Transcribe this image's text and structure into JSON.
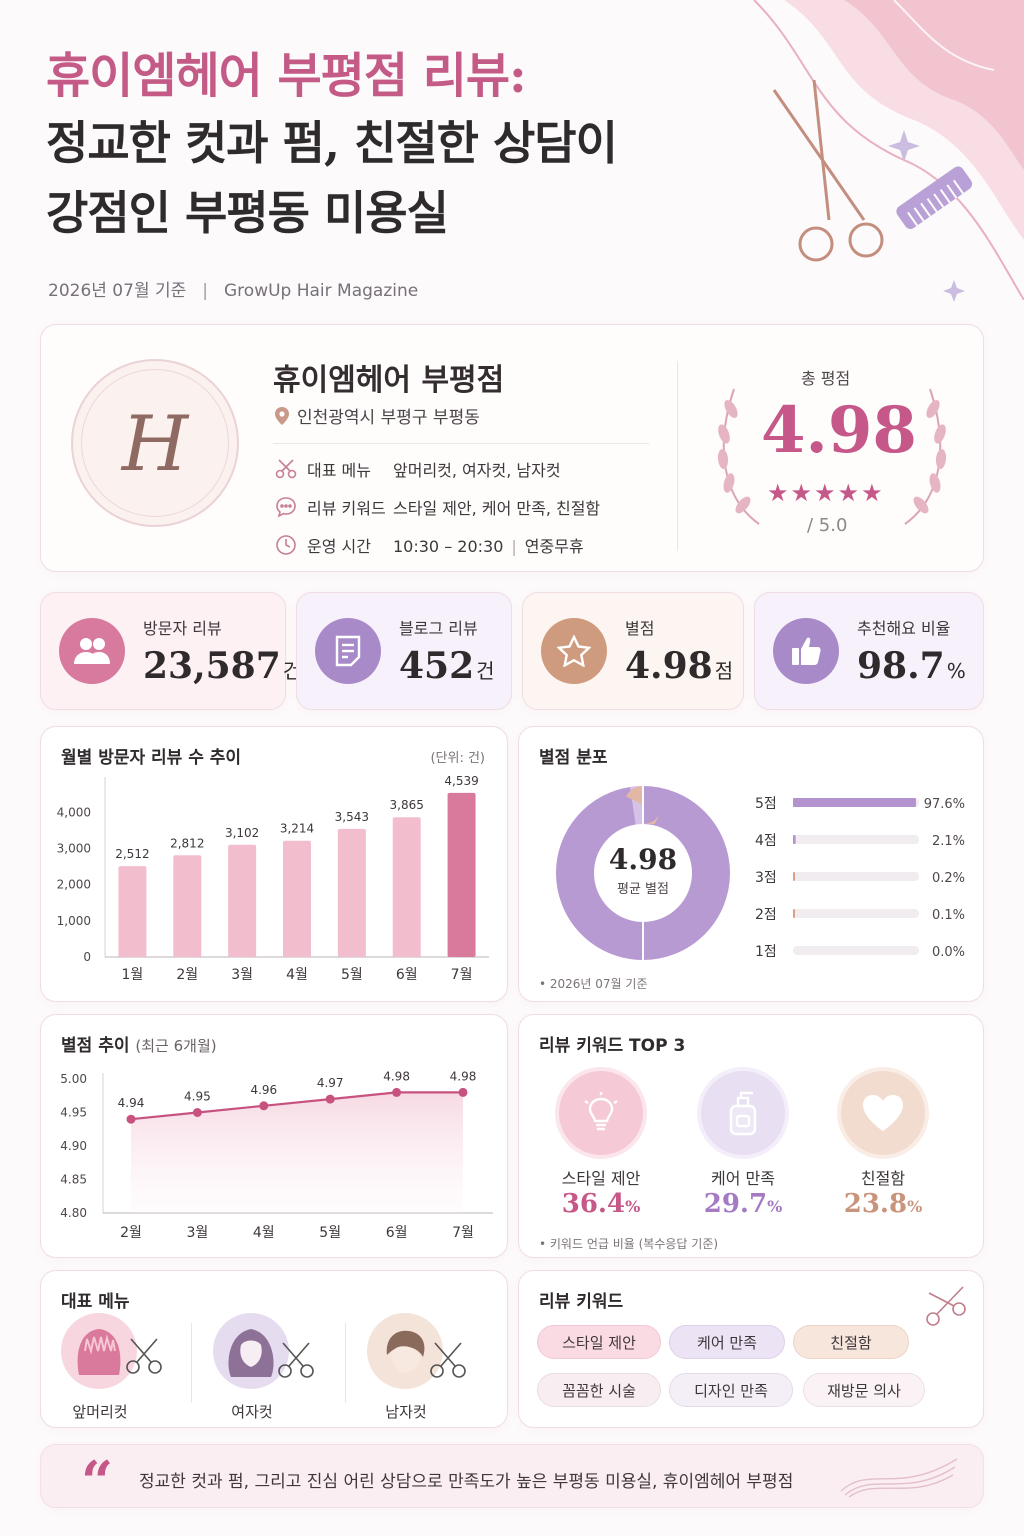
{
  "header": {
    "title_line1": "휴이엠헤어 부평점 리뷰:",
    "title_line2": "정교한 컷과 펌, 친절한 상담이",
    "title_line3": "강점인 부평동 미용실",
    "date": "2026년 07월 기준",
    "publisher": "GrowUp Hair Magazine"
  },
  "shop": {
    "logo_letter": "H",
    "name": "휴이엠헤어 부평점",
    "address": "인천광역시 부평구 부평동",
    "rows": [
      {
        "label": "대표 메뉴",
        "value": "앞머리컷, 여자컷, 남자컷",
        "icon": "scissors-icon"
      },
      {
        "label": "리뷰 키워드",
        "value": "스타일 제안, 케어 만족, 친절함",
        "icon": "chat-bubble-icon"
      },
      {
        "label": "운영 시간",
        "value": "10:30 – 20:30",
        "value_extra": "연중무휴",
        "icon": "clock-icon"
      }
    ],
    "total_label": "총 평점",
    "total_value": "4.98",
    "total_stars": "★★★★★",
    "total_max": "/ 5.0"
  },
  "stats": [
    {
      "label": "방문자 리뷰",
      "value": "23,587",
      "unit": "건",
      "icon": "people-icon",
      "color": "#d77a9e"
    },
    {
      "label": "블로그 리뷰",
      "value": "452",
      "unit": "건",
      "icon": "document-icon",
      "color": "#a98ac9"
    },
    {
      "label": "별점",
      "value": "4.98",
      "unit": "점",
      "icon": "star-icon",
      "color": "#cf9b7e"
    },
    {
      "label": "추천해요 비율",
      "value": "98.7",
      "unit": "%",
      "icon": "thumbs-up-icon",
      "color": "#a98ac9"
    }
  ],
  "monthly_panel": {
    "title": "월별 방문자 리뷰 수 추이",
    "unit_note": "(단위: 건)"
  },
  "rating_dist_panel": {
    "title": "별점 분포",
    "center_value": "4.98",
    "center_label": "평균 별점",
    "footnote": "• 2026년 07월 기준"
  },
  "rating_trend_panel": {
    "title": "별점 추이",
    "title_sub": "(최근 6개월)"
  },
  "keyword_top_panel": {
    "title": "리뷰 키워드 TOP 3",
    "items": [
      {
        "label": "스타일 제안",
        "value": "36.4",
        "unit": "%",
        "icon": "lightbulb-icon",
        "color": "#c65789"
      },
      {
        "label": "케어 만족",
        "value": "29.7",
        "unit": "%",
        "icon": "bottle-icon",
        "color": "#a47bc3"
      },
      {
        "label": "친절함",
        "value": "23.8",
        "unit": "%",
        "icon": "heart-icon",
        "color": "#c9947c"
      }
    ],
    "footnote": "• 키워드 언급 비율 (복수응답 기준)"
  },
  "menu_panel": {
    "title": "대표 메뉴",
    "items": [
      {
        "label": "앞머리컷",
        "icon": "bangs-hair-icon"
      },
      {
        "label": "여자컷",
        "icon": "women-hair-icon"
      },
      {
        "label": "남자컷",
        "icon": "men-hair-icon"
      }
    ]
  },
  "keyword_panel": {
    "title": "리뷰 키워드",
    "tags": [
      "스타일 제안",
      "케어 만족",
      "친절함",
      "꼼꼼한 시술",
      "디자인 만족",
      "재방문 의사"
    ]
  },
  "quote": {
    "mark": "“",
    "text": "정교한 컷과 펌, 그리고 진심 어린 상담으로 만족도가 높은 부평동 미용실, 휴이엠헤어 부평점"
  },
  "chart_data": [
    {
      "type": "bar",
      "title": "월별 방문자 리뷰 수 추이",
      "categories": [
        "1월",
        "2월",
        "3월",
        "4월",
        "5월",
        "6월",
        "7월"
      ],
      "values": [
        2512,
        2812,
        3102,
        3214,
        3543,
        3865,
        4539
      ],
      "value_labels": [
        "2,512",
        "2,812",
        "3,102",
        "3,214",
        "3,543",
        "3,865",
        "4,539"
      ],
      "ylim": [
        0,
        4700
      ],
      "yticks": [
        0,
        1000,
        2000,
        3000,
        4000
      ],
      "ytick_labels": [
        "0",
        "1,000",
        "2,000",
        "3,000",
        "4,000"
      ],
      "colors": {
        "bar": "#f2bdcd",
        "highlight": "#d97a9d"
      }
    },
    {
      "type": "bar",
      "title": "별점 분포",
      "categories": [
        "5점",
        "4점",
        "3점",
        "2점",
        "1점"
      ],
      "values": [
        97.6,
        2.1,
        0.2,
        0.1,
        0.0
      ],
      "value_labels": [
        "97.6%",
        "2.1%",
        "0.2%",
        "0.1%",
        "0.0%"
      ],
      "colors": {
        "bar": "#b293cf",
        "minor": "#d9a088"
      }
    },
    {
      "type": "line",
      "title": "별점 추이",
      "categories": [
        "2월",
        "3월",
        "4월",
        "5월",
        "6월",
        "7월"
      ],
      "values": [
        4.94,
        4.95,
        4.96,
        4.97,
        4.98,
        4.98
      ],
      "value_labels": [
        "4.94",
        "4.95",
        "4.96",
        "4.97",
        "4.98",
        "4.98"
      ],
      "ylim": [
        4.8,
        5.0
      ],
      "yticks": [
        4.8,
        4.85,
        4.9,
        4.95,
        5.0
      ],
      "ytick_labels": [
        "4.80",
        "4.85",
        "4.90",
        "4.95",
        "5.00"
      ],
      "colors": {
        "line": "#c8527f"
      }
    }
  ]
}
